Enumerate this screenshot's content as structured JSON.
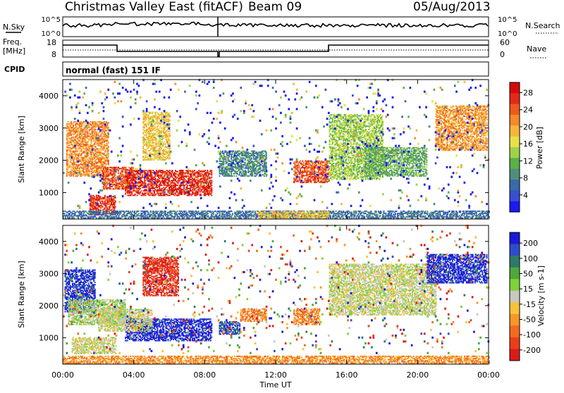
{
  "header": {
    "station": "Christmas Valley East (fitACF)",
    "beam": "Beam 09",
    "date": "05/Aug/2013"
  },
  "top_panels": {
    "nsky_label": "N.Sky",
    "nsky_ticks": [
      "10^5",
      "10^0"
    ],
    "nsearch_label": "N.Search",
    "nsearch_ticks": [
      "10^5",
      "10^0"
    ],
    "freq_label": "Freq.",
    "freq_unit": "[MHz]",
    "freq_ticks": [
      "18",
      "8"
    ],
    "nave_label": "Nave",
    "nave_ticks": [
      "60",
      "0"
    ],
    "cpid_label": "CPID",
    "cpid_value": "normal (fast) 151 IF"
  },
  "chart_data": [
    {
      "type": "heatmap",
      "name": "power",
      "xlabel": "Time UT",
      "ylabel": "Slant Range [km]",
      "x_ticks": [
        "00:00",
        "04:00",
        "08:00",
        "12:00",
        "16:00",
        "20:00",
        "00:00"
      ],
      "x_range_hours": [
        0,
        24
      ],
      "ylim": [
        180,
        4500
      ],
      "y_ticks": [
        1000,
        2000,
        3000,
        4000
      ],
      "colorbar": {
        "label": "Power [dB]",
        "ticks": [
          "4",
          "8",
          "12",
          "16",
          "20",
          "24",
          "28"
        ],
        "colors": [
          "#1a1af5",
          "#3a4fd0",
          "#3b6aa8",
          "#4f8f7a",
          "#5bb04a",
          "#9fd24a",
          "#e8e04a",
          "#f6b53a",
          "#f48a2a",
          "#ee5a1e",
          "#e4281a",
          "#d40a0a"
        ]
      },
      "regions": [
        {
          "t0": 0.2,
          "t1": 2.6,
          "r0": 1500,
          "r1": 3200,
          "c": 0.72
        },
        {
          "t0": 1.5,
          "t1": 3.0,
          "r0": 300,
          "r1": 900,
          "c": 0.9
        },
        {
          "t0": 2.2,
          "t1": 4.0,
          "r0": 1100,
          "r1": 1800,
          "c": 0.85
        },
        {
          "t0": 3.5,
          "t1": 8.4,
          "r0": 900,
          "r1": 1700,
          "c": 0.92
        },
        {
          "t0": 4.5,
          "t1": 6.0,
          "r0": 2000,
          "r1": 3500,
          "c": 0.6
        },
        {
          "t0": 8.8,
          "t1": 11.5,
          "r0": 1500,
          "r1": 2300,
          "c": 0.25
        },
        {
          "t0": 13.0,
          "t1": 15.0,
          "r0": 1300,
          "r1": 2000,
          "c": 0.85
        },
        {
          "t0": 15.0,
          "t1": 18.0,
          "r0": 1400,
          "r1": 3400,
          "c": 0.45
        },
        {
          "t0": 17.0,
          "t1": 20.5,
          "r0": 1500,
          "r1": 2400,
          "c": 0.35
        },
        {
          "t0": 21.0,
          "t1": 23.9,
          "r0": 2300,
          "r1": 3700,
          "c": 0.7
        },
        {
          "t0": 0.0,
          "t1": 24.0,
          "r0": 200,
          "r1": 420,
          "c": 0.2
        },
        {
          "t0": 11.0,
          "t1": 15.0,
          "r0": 180,
          "r1": 420,
          "c": 0.6
        },
        {
          "t0": 0.0,
          "t1": 24.0,
          "r0": 500,
          "r1": 4500,
          "c": 0.12,
          "sparse": true
        }
      ]
    },
    {
      "type": "heatmap",
      "name": "velocity",
      "xlabel": "Time UT",
      "ylabel": "Slant Range [km]",
      "x_ticks": [
        "00:00",
        "04:00",
        "08:00",
        "12:00",
        "16:00",
        "20:00",
        "00:00"
      ],
      "x_range_hours": [
        0,
        24
      ],
      "ylim": [
        180,
        4500
      ],
      "y_ticks": [
        1000,
        2000,
        3000,
        4000
      ],
      "colorbar": {
        "label": "Velocity [m s-1]",
        "ticks": [
          "200",
          "100",
          "50",
          "15",
          "-15",
          "-50",
          "-100",
          "-200"
        ],
        "colors": [
          "#1a1ad8",
          "#2d4dc8",
          "#2e7a6a",
          "#4fa83a",
          "#7dd23a",
          "#c8c8c0",
          "#f7c33a",
          "#f7952a",
          "#f26a1f",
          "#e8401a",
          "#dc1a1a"
        ]
      },
      "regions": [
        {
          "t0": 0.1,
          "t1": 1.8,
          "r0": 1800,
          "r1": 3100,
          "v": 0.05
        },
        {
          "t0": 0.3,
          "t1": 3.5,
          "r0": 1400,
          "r1": 2200,
          "v": 0.45
        },
        {
          "t0": 3.5,
          "t1": 8.4,
          "r0": 900,
          "r1": 1600,
          "v": 0.02
        },
        {
          "t0": 2.0,
          "t1": 5.0,
          "r0": 1200,
          "r1": 1900,
          "v": 0.5
        },
        {
          "t0": 4.5,
          "t1": 6.5,
          "r0": 2300,
          "r1": 3500,
          "v": 0.95
        },
        {
          "t0": 8.8,
          "t1": 10.0,
          "r0": 1100,
          "r1": 1500,
          "v": 0.1
        },
        {
          "t0": 10.0,
          "t1": 11.5,
          "r0": 1500,
          "r1": 1900,
          "v": 0.75
        },
        {
          "t0": 13.0,
          "t1": 14.5,
          "r0": 1400,
          "r1": 1900,
          "v": 0.75
        },
        {
          "t0": 15.0,
          "t1": 21.0,
          "r0": 1700,
          "r1": 3300,
          "v": 0.5
        },
        {
          "t0": 20.5,
          "t1": 23.9,
          "r0": 2700,
          "r1": 3600,
          "v": 0.03
        },
        {
          "t0": 0.0,
          "t1": 24.0,
          "r0": 200,
          "r1": 420,
          "v": 0.72
        },
        {
          "t0": 0.5,
          "t1": 3.0,
          "r0": 500,
          "r1": 1000,
          "v": 0.5
        },
        {
          "t0": 0.0,
          "t1": 24.0,
          "r0": 500,
          "r1": 4500,
          "v": 0.5,
          "sparse": true
        }
      ]
    }
  ]
}
